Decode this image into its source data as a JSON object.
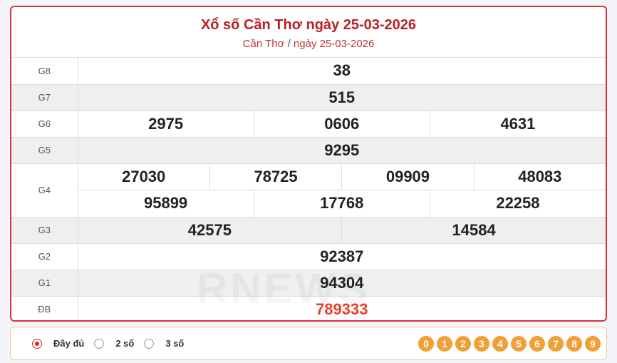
{
  "header": {
    "title": "Xổ số Cần Thơ ngày 25-03-2026",
    "breadcrumb_province": "Cần Thơ",
    "breadcrumb_sep": "/",
    "breadcrumb_date": "ngày 25-03-2026"
  },
  "prizes": [
    {
      "label": "G8",
      "numbers": [
        "38"
      ]
    },
    {
      "label": "G7",
      "numbers": [
        "515"
      ]
    },
    {
      "label": "G6",
      "numbers": [
        "2975",
        "0606",
        "4631"
      ]
    },
    {
      "label": "G5",
      "numbers": [
        "9295"
      ]
    },
    {
      "label": "G4",
      "numbers": [
        "27030",
        "78725",
        "09909",
        "48083",
        "95899",
        "17768",
        "22258"
      ]
    },
    {
      "label": "G3",
      "numbers": [
        "42575",
        "14584"
      ]
    },
    {
      "label": "G2",
      "numbers": [
        "92387"
      ]
    },
    {
      "label": "G1",
      "numbers": [
        "94304"
      ]
    },
    {
      "label": "ĐB",
      "numbers": [
        "789333"
      ]
    }
  ],
  "watermark": "RNEWS",
  "colors": {
    "accent": "#d9323c",
    "special": "#e8402a",
    "ball": "#f0a035"
  },
  "options": [
    {
      "label": "Đầy đủ",
      "selected": true
    },
    {
      "label": "2 số",
      "selected": false
    },
    {
      "label": "3 số",
      "selected": false
    }
  ],
  "digits": [
    "0",
    "1",
    "2",
    "3",
    "4",
    "5",
    "6",
    "7",
    "8",
    "9"
  ]
}
